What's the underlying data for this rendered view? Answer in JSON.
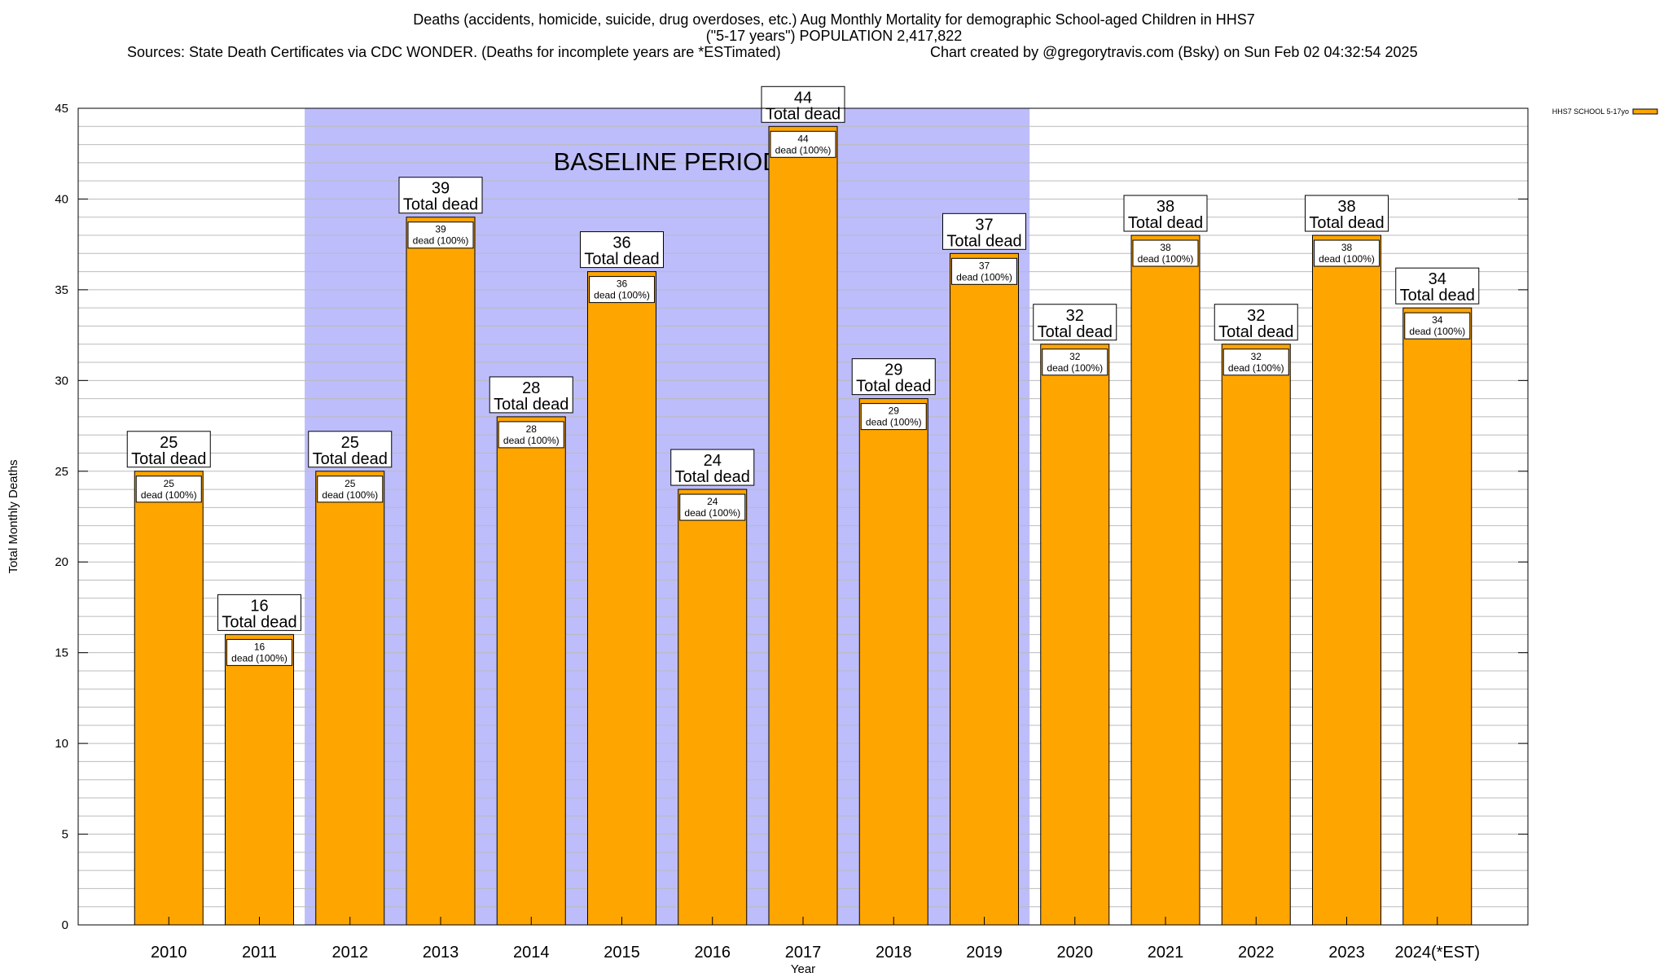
{
  "header": {
    "title_line1": "Deaths (accidents, homicide, suicide, drug overdoses, etc.) Aug Monthly Mortality for demographic School-aged Children in HHS7",
    "title_line2": "(\"5-17 years\") POPULATION 2,417,822",
    "sources": "Sources: State Death Certificates via CDC WONDER. (Deaths for incomplete years are *ESTimated)",
    "credit": "Chart created by @gregorytravis.com (Bsky) on Sun Feb 02 04:32:54 2025"
  },
  "colors": {
    "bar_fill": "#FFA500",
    "bar_stroke": "#000000",
    "baseline_shade": "#BDBDFB",
    "grid": "#BBBBBB",
    "background": "#FFFFFF"
  },
  "chart_data": {
    "type": "bar",
    "xlabel": "Year",
    "ylabel": "Total Monthly Deaths",
    "ylim": [
      0,
      45
    ],
    "y_major_ticks": [
      0,
      5,
      10,
      15,
      20,
      25,
      30,
      35,
      40,
      45
    ],
    "y_minor_step": 1,
    "grid": true,
    "legend_position": "top-right",
    "categories": [
      "2010",
      "2011",
      "2012",
      "2013",
      "2014",
      "2015",
      "2016",
      "2017",
      "2018",
      "2019",
      "2020",
      "2021",
      "2022",
      "2023",
      "2024(*EST)"
    ],
    "series": [
      {
        "name": "HHS7 SCHOOL 5-17yo",
        "values": [
          25,
          16,
          25,
          39,
          28,
          36,
          24,
          44,
          29,
          37,
          32,
          38,
          32,
          38,
          34
        ]
      }
    ],
    "top_labels": [
      "25\nTotal dead",
      "16\nTotal dead",
      "25\nTotal dead",
      "39\nTotal dead",
      "28\nTotal dead",
      "36\nTotal dead",
      "24\nTotal dead",
      "44\nTotal dead",
      "29\nTotal dead",
      "37\nTotal dead",
      "32\nTotal dead",
      "38\nTotal dead",
      "32\nTotal dead",
      "38\nTotal dead",
      "34\nTotal dead"
    ],
    "inner_labels": [
      "25\ndead (100%)",
      "16\ndead (100%)",
      "25\ndead (100%)",
      "39\ndead (100%)",
      "28\ndead (100%)",
      "36\ndead (100%)",
      "24\ndead (100%)",
      "44\ndead (100%)",
      "29\ndead (100%)",
      "37\ndead (100%)",
      "32\ndead (100%)",
      "38\ndead (100%)",
      "32\ndead (100%)",
      "38\ndead (100%)",
      "34\ndead (100%)"
    ],
    "baseline_period": {
      "label": "BASELINE PERIOD",
      "from_category": "2012",
      "to_category": "2019"
    }
  }
}
